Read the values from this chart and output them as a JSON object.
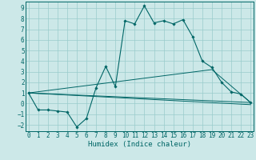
{
  "xlabel": "Humidex (Indice chaleur)",
  "x_ticks": [
    0,
    1,
    2,
    3,
    4,
    5,
    6,
    7,
    8,
    9,
    10,
    11,
    12,
    13,
    14,
    15,
    16,
    17,
    18,
    19,
    20,
    21,
    22,
    23
  ],
  "y_ticks": [
    -2,
    -1,
    0,
    1,
    2,
    3,
    4,
    5,
    6,
    7,
    8,
    9
  ],
  "ylim": [
    -2.6,
    9.6
  ],
  "xlim": [
    -0.3,
    23.3
  ],
  "bg_color": "#cce8e8",
  "grid_color": "#99cccc",
  "line_color": "#006666",
  "line1_x": [
    0,
    1,
    2,
    3,
    4,
    5,
    6,
    7,
    8,
    9,
    10,
    11,
    12,
    13,
    14,
    15,
    16,
    17,
    18,
    19,
    20,
    21,
    22,
    23
  ],
  "line1_y": [
    1.0,
    -0.6,
    -0.6,
    -0.7,
    -0.8,
    -2.2,
    -1.4,
    1.5,
    3.5,
    1.6,
    7.8,
    7.5,
    9.2,
    7.6,
    7.8,
    7.5,
    7.9,
    6.3,
    4.0,
    3.4,
    2.0,
    1.1,
    0.9,
    0.1
  ],
  "line2_x": [
    0,
    23
  ],
  "line2_y": [
    1.0,
    -0.1
  ],
  "line3_x": [
    0,
    23
  ],
  "line3_y": [
    1.0,
    0.1
  ],
  "line4_x": [
    0,
    19,
    23
  ],
  "line4_y": [
    1.0,
    3.2,
    0.1
  ],
  "xlabel_fontsize": 6.5,
  "tick_fontsize": 5.5
}
